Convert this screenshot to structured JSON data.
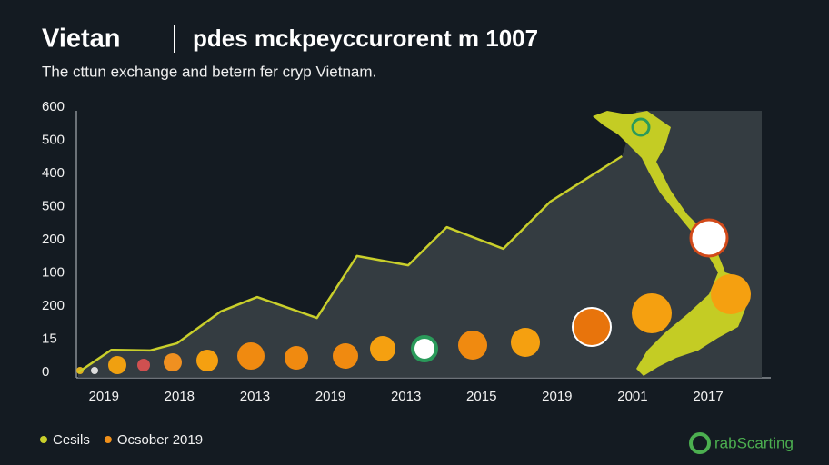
{
  "chart_data": {
    "type": "line",
    "title": "Vietan",
    "subtitle": "pdes mckpeyccurorent m 1007",
    "description": "The cttun exchange and betern fer cryp Vietnam.",
    "categories": [
      "2019",
      "2018",
      "2013",
      "2019",
      "2013",
      "2015",
      "2019",
      "2001",
      "2017"
    ],
    "y_labels": [
      "0",
      "15",
      "200",
      "100",
      "200",
      "500",
      "400",
      "500",
      "600"
    ],
    "xlim": [
      -0.34,
      8.83
    ],
    "ylim": [
      0,
      8
    ],
    "series": [
      {
        "name": "Cesils",
        "color": "#c9cf2b",
        "x": [
          -0.34,
          0.1,
          0.61,
          0.97,
          1.55,
          2.03,
          2.82,
          3.35,
          4.03,
          4.54,
          5.29,
          5.91,
          6.86
        ],
        "values": [
          0,
          0.68,
          0.66,
          0.88,
          1.84,
          2.27,
          1.64,
          3.51,
          3.23,
          4.38,
          3.73,
          5.15,
          6.52
        ]
      },
      {
        "name": "Ocsober 2019",
        "color": "#f0901a"
      }
    ],
    "brand": "rabScarting"
  }
}
